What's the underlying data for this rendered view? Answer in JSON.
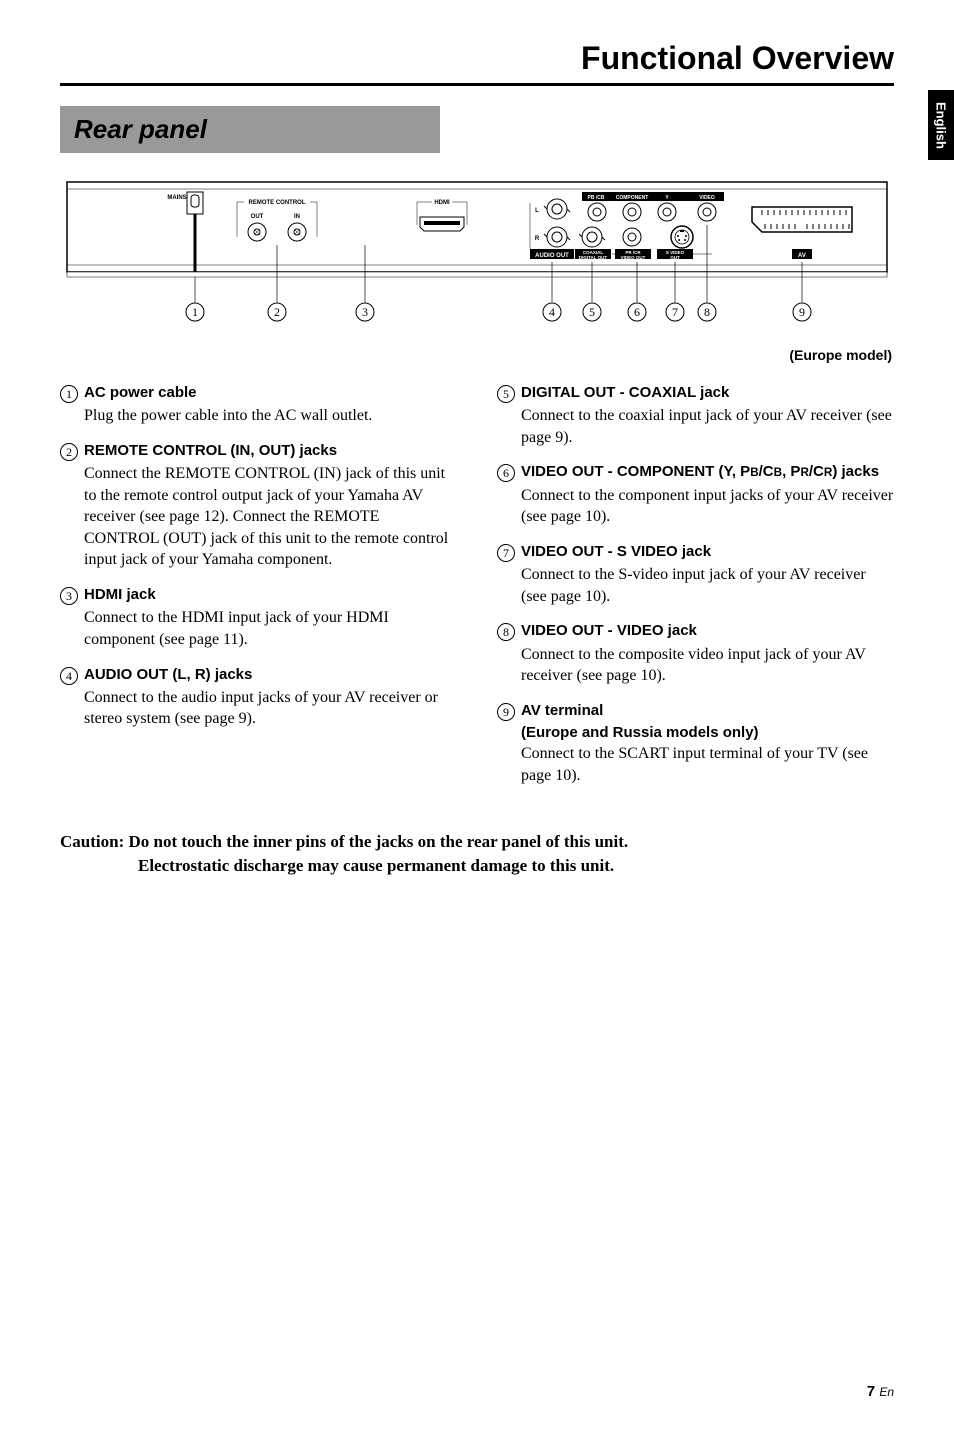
{
  "page_title": "Functional Overview",
  "side_tab": "English",
  "section_header": "Rear panel",
  "diagram_caption": "(Europe model)",
  "diagram": {
    "labels": {
      "mains": "MAINS",
      "remote_control": "REMOTE CONTROL",
      "out": "OUT",
      "in": "IN",
      "hdmi": "HDMI",
      "audio_out": "AUDIO OUT",
      "coaxial": "COAXIAL",
      "digital_out": "DIGITAL OUT",
      "video_out_group": "VIDEO OUT",
      "component": "COMPONENT",
      "pbcr": "PB /CB",
      "prcr": "PR /CR",
      "y": "Y",
      "video": "VIDEO",
      "svideo": "S VIDEO",
      "av": "AV",
      "l": "L",
      "r": "R"
    },
    "callouts": [
      "1",
      "2",
      "3",
      "4",
      "5",
      "6",
      "7",
      "8",
      "9"
    ],
    "colors": {
      "panel_bg": "#ffffff",
      "stroke": "#000000",
      "text": "#000000",
      "dark_strip": "#000000"
    }
  },
  "items_left": [
    {
      "num": "1",
      "title": "AC power cable",
      "desc": "Plug the power cable into the AC wall outlet."
    },
    {
      "num": "2",
      "title": "REMOTE CONTROL (IN, OUT) jacks",
      "desc": "Connect the REMOTE CONTROL (IN) jack of this unit to the remote control output jack of your Yamaha AV receiver (see page 12). Connect the REMOTE CONTROL (OUT) jack of this unit to the remote control input jack of your Yamaha component."
    },
    {
      "num": "3",
      "title": "HDMI jack",
      "desc": "Connect to the HDMI input jack of your HDMI component (see page 11)."
    },
    {
      "num": "4",
      "title": "AUDIO OUT (L, R) jacks",
      "desc": "Connect to the audio input jacks of your AV receiver or stereo system (see page 9)."
    }
  ],
  "items_right": [
    {
      "num": "5",
      "title": "DIGITAL OUT - COAXIAL jack",
      "desc": "Connect to the coaxial input jack of your AV receiver (see page 9)."
    },
    {
      "num": "6",
      "title_html": "VIDEO OUT - COMPONENT (Y, P<span class='smallcap'>B</span>/C<span class='smallcap'>B</span>, P<span class='smallcap'>R</span>/C<span class='smallcap'>R</span>) jacks",
      "desc": "Connect to the component input jacks of your AV receiver (see page 10)."
    },
    {
      "num": "7",
      "title": "VIDEO OUT - S VIDEO jack",
      "desc": "Connect to the S-video input jack of your AV receiver (see page 10)."
    },
    {
      "num": "8",
      "title": "VIDEO OUT - VIDEO jack",
      "desc": "Connect to the composite video input jack of your AV receiver (see page 10)."
    },
    {
      "num": "9",
      "title": "AV terminal",
      "subtitle": "(Europe and Russia models only)",
      "desc": "Connect to the SCART input terminal of your TV (see page 10)."
    }
  ],
  "caution": {
    "line1": "Caution: Do not touch the inner pins of the jacks on the rear panel of this unit.",
    "line2": "Electrostatic discharge may cause permanent damage to this unit."
  },
  "footer": {
    "page": "7",
    "suffix": "En"
  }
}
